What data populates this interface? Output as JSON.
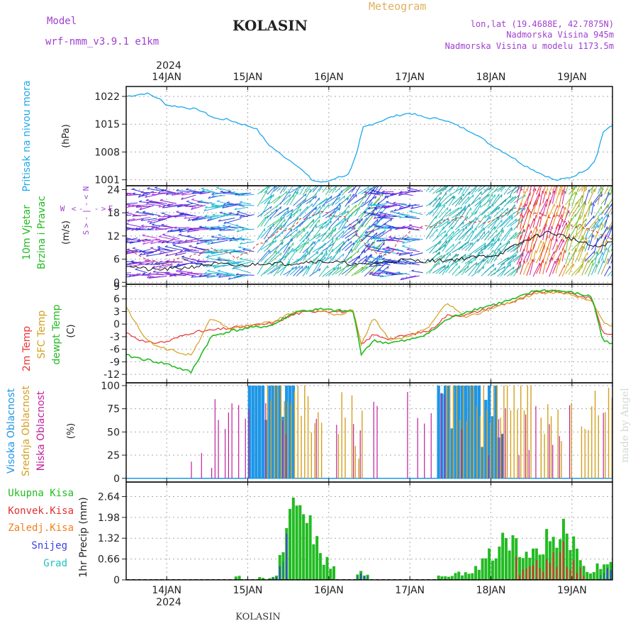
{
  "header": {
    "model_label": "Model",
    "model_name": "wrf-nmm_v3.9.1 e1km",
    "station": "KOLASIN",
    "product": "Meteogram",
    "lonlat": "lon,lat (19.4688E, 42.7875N)",
    "elevation": "Nadmorska Visina 945m",
    "model_elevation": "Nadmorska Visina u modelu 1173.5m",
    "footer_station": "KOLASIN",
    "credit": "made by Angel"
  },
  "colors": {
    "pressure": "#1ea8ec",
    "wind_label": "#22bb22",
    "wind_units": "#a040d0",
    "t2m": "#ee3333",
    "sfc": "#d4a020",
    "dewpt": "#22bb22",
    "cloud_high": "#1e96e6",
    "cloud_mid": "#d4a020",
    "cloud_low": "#c0209a",
    "precip_total": "#22bb22",
    "precip_conv": "#e03030",
    "precip_frozen": "#f08020",
    "precip_snow": "#4040e0",
    "precip_hail": "#20c0c0",
    "header_purple": "#a040d0",
    "meteogram": "#e0b060"
  },
  "chart_data": {
    "type": "meteogram",
    "time_axis": {
      "year": "2024",
      "days": [
        "14JAN",
        "15JAN",
        "16JAN",
        "17JAN",
        "18JAN",
        "19JAN"
      ],
      "range_days": [
        13.5,
        19.5
      ]
    },
    "pressure": {
      "ylabel": "Pritisak na nivou mora",
      "units": "(hPa)",
      "ticks": [
        "1022",
        "1015",
        "1008",
        "1001"
      ],
      "tick_values": [
        1022,
        1015,
        1008,
        1001
      ],
      "ylim": [
        999.5,
        1024.5
      ],
      "x": [
        13.5,
        13.6,
        13.75,
        13.9,
        14.0,
        14.2,
        14.4,
        14.6,
        14.75,
        14.9,
        15.1,
        15.25,
        15.4,
        15.6,
        15.8,
        15.95,
        16.1,
        16.25,
        16.35,
        16.42,
        16.6,
        16.8,
        17.0,
        17.2,
        17.4,
        17.6,
        17.8,
        18.0,
        18.2,
        18.4,
        18.6,
        18.8,
        19.0,
        19.2,
        19.3,
        19.38,
        19.5
      ],
      "values": [
        1022,
        1022.3,
        1022.8,
        1021.5,
        1019.8,
        1019.3,
        1018.6,
        1016.4,
        1016.2,
        1015.2,
        1014.0,
        1010.0,
        1007.5,
        1004.8,
        1000.8,
        1000.3,
        1001.6,
        1002.3,
        1008.0,
        1014.2,
        1015.5,
        1017.0,
        1017.8,
        1016.6,
        1016.3,
        1014.5,
        1012.7,
        1009.8,
        1007.5,
        1004.8,
        1002.7,
        1000.8,
        1001.7,
        1003.9,
        1006.4,
        1013.0,
        1014.6
      ]
    },
    "wind": {
      "ylabel": [
        "10m Vjetar",
        "Brzina i Pravac"
      ],
      "units": "(m/s)",
      "ticks": [
        "24",
        "18",
        "12",
        "6",
        "0"
      ],
      "tick_values": [
        24,
        18,
        12,
        6,
        0
      ],
      "ylim": [
        -0.5,
        25
      ],
      "compass": [
        "N",
        "<",
        "-",
        "|",
        "-",
        ">",
        "E",
        "W",
        "S"
      ],
      "speed_x": [
        13.5,
        13.8,
        14.1,
        14.3,
        14.6,
        14.9,
        15.2,
        15.5,
        15.8,
        16.1,
        16.4,
        16.6,
        16.9,
        17.2,
        17.5,
        17.8,
        18.1,
        18.3,
        18.5,
        18.7,
        18.9,
        19.1,
        19.3,
        19.5
      ],
      "speed": [
        4.5,
        3.2,
        3.5,
        4.0,
        4.8,
        4.2,
        5.0,
        4.8,
        5.5,
        5.2,
        4.5,
        5.0,
        5.8,
        5.5,
        5.8,
        6.5,
        7.2,
        9.5,
        11.5,
        13.0,
        12.0,
        10.5,
        9.0,
        10.5
      ],
      "gust_x": [
        13.5,
        13.8,
        14.0,
        14.3,
        14.6,
        14.9,
        15.3,
        15.6,
        15.9,
        16.2,
        16.5,
        16.7,
        17.0,
        17.3,
        17.6,
        17.9,
        18.2,
        18.4,
        18.6,
        18.8,
        19.0,
        19.2,
        19.5
      ],
      "gust": [
        8.0,
        5.5,
        5.0,
        6.5,
        8.5,
        6.5,
        12.0,
        15.5,
        18.0,
        17.0,
        8.0,
        7.0,
        13.0,
        15.0,
        17.0,
        15.0,
        18.0,
        19.0,
        18.0,
        17.0,
        15.0,
        14.0,
        11.0
      ]
    },
    "temperature": {
      "ylabel": [
        "2m Temp",
        "SFC Temp",
        "dewpt Temp"
      ],
      "units": "(C)",
      "ticks": [
        "9",
        "6",
        "3",
        "0",
        "-3",
        "-6",
        "-9",
        "-12"
      ],
      "tick_values": [
        9,
        6,
        3,
        0,
        -3,
        -6,
        -9,
        -12
      ],
      "ylim": [
        -14,
        9.5
      ],
      "x": [
        13.5,
        13.75,
        14.0,
        14.3,
        14.55,
        14.75,
        15.0,
        15.3,
        15.6,
        15.9,
        16.1,
        16.3,
        16.4,
        16.55,
        16.75,
        17.0,
        17.25,
        17.45,
        17.7,
        18.0,
        18.3,
        18.55,
        18.8,
        19.0,
        19.25,
        19.38,
        19.5
      ],
      "series": [
        {
          "name": "2m Temp",
          "values": [
            -2.0,
            -4.5,
            -4.2,
            -2.0,
            -1.5,
            -1.0,
            -0.5,
            0.2,
            2.5,
            3.3,
            3.0,
            2.8,
            -5.0,
            -2.5,
            -3.5,
            -2.5,
            -1.5,
            2.0,
            2.2,
            4.0,
            5.5,
            7.5,
            7.8,
            7.2,
            6.0,
            -2.0,
            -2.5
          ]
        },
        {
          "name": "SFC Temp",
          "values": [
            4.0,
            -4.0,
            -6.0,
            -7.5,
            1.5,
            -1.0,
            -0.5,
            0.5,
            3.0,
            3.3,
            2.0,
            3.5,
            -5.0,
            1.5,
            -4.0,
            -3.0,
            -0.5,
            5.0,
            1.5,
            3.8,
            5.5,
            7.4,
            7.5,
            7.0,
            5.5,
            0.5,
            -0.5
          ]
        },
        {
          "name": "dewpt Temp",
          "values": [
            -7.5,
            -8.5,
            -9.5,
            -11.5,
            -3.0,
            -1.8,
            -1.0,
            -0.3,
            3.0,
            3.5,
            3.2,
            3.0,
            -7.0,
            -4.0,
            -4.5,
            -3.8,
            -2.0,
            1.0,
            3.0,
            4.5,
            6.0,
            8.0,
            8.0,
            7.5,
            6.5,
            -4.0,
            -4.5
          ]
        }
      ]
    },
    "cloud": {
      "ylabel": [
        "Visoka Oblacnost",
        "Srednja Oblacnost",
        "Niska Oblacnost"
      ],
      "units": "(%)",
      "ticks": [
        "100",
        "75",
        "50",
        "25",
        "0"
      ],
      "tick_values": [
        100,
        75,
        50,
        25,
        0
      ],
      "ylim": [
        -4,
        103
      ]
    },
    "precip": {
      "ylabel": "1hr Precip (mm)",
      "ticks": [
        "2.64",
        "1.98",
        "1.32",
        "0.66",
        "0"
      ],
      "tick_values": [
        2.64,
        1.98,
        1.32,
        0.66,
        0
      ],
      "ylim": [
        0,
        3.1
      ],
      "legend": [
        "Ukupna Kisa",
        "Konvek.Kisa",
        "Zaledj.Kisa",
        "Snijeg",
        "Grad"
      ],
      "peaks_x": [
        15.35,
        15.55,
        15.65,
        15.8,
        16.0,
        16.45,
        17.45,
        17.85,
        18.1,
        18.25,
        18.4,
        18.6,
        18.85,
        19.0,
        19.2,
        19.4
      ],
      "peaks": [
        0.1,
        2.5,
        2.7,
        1.4,
        0.6,
        0.2,
        0.1,
        0.4,
        1.2,
        1.3,
        0.9,
        1.3,
        1.8,
        1.4,
        0.2,
        0.6
      ]
    }
  }
}
